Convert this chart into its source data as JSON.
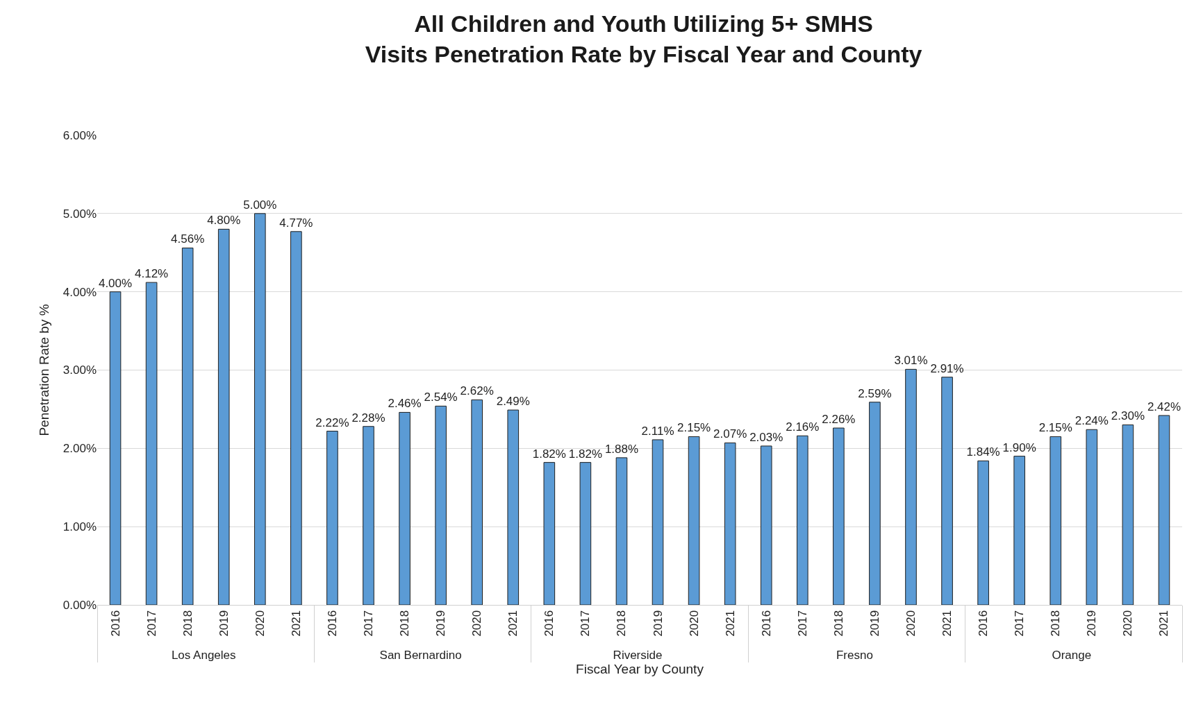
{
  "chart_data": {
    "type": "bar",
    "title": "All Children and Youth Utilizing 5+ SMHS\nVisits Penetration Rate by Fiscal Year and County",
    "xlabel": "Fiscal Year by County",
    "ylabel": "Penetration Rate by %",
    "categories": [
      "2016",
      "2017",
      "2018",
      "2019",
      "2020",
      "2021",
      "2016",
      "2017",
      "2018",
      "2019",
      "2020",
      "2021",
      "2016",
      "2017",
      "2018",
      "2019",
      "2020",
      "2021",
      "2016",
      "2017",
      "2018",
      "2019",
      "2020",
      "2021",
      "2016",
      "2017",
      "2018",
      "2019",
      "2020",
      "2021"
    ],
    "annotations": [
      "Los Angeles",
      "San Bernardino",
      "Riverside",
      "Fresno",
      "Orange"
    ],
    "values": [
      4.0,
      4.12,
      4.56,
      4.8,
      5.0,
      4.77,
      2.22,
      2.28,
      2.46,
      2.54,
      2.62,
      2.49,
      1.82,
      1.82,
      1.88,
      2.11,
      2.15,
      2.07,
      2.03,
      2.16,
      2.26,
      2.59,
      3.01,
      2.91,
      1.84,
      1.9,
      2.15,
      2.24,
      2.3,
      2.42
    ],
    "value_labels": [
      "4.00%",
      "4.12%",
      "4.56%",
      "4.80%",
      "5.00%",
      "4.77%",
      "2.22%",
      "2.28%",
      "2.46%",
      "2.54%",
      "2.62%",
      "2.49%",
      "1.82%",
      "1.82%",
      "1.88%",
      "2.11%",
      "2.15%",
      "2.07%",
      "2.03%",
      "2.16%",
      "2.26%",
      "2.59%",
      "3.01%",
      "2.91%",
      "1.84%",
      "1.90%",
      "2.15%",
      "2.24%",
      "2.30%",
      "2.42%"
    ],
    "color": "#5b9bd5",
    "ylim": [
      0,
      6
    ],
    "yticks": [
      {
        "value": 0,
        "label": "0.00%"
      },
      {
        "value": 1,
        "label": "1.00%"
      },
      {
        "value": 2,
        "label": "2.00%"
      },
      {
        "value": 3,
        "label": "3.00%"
      },
      {
        "value": 4,
        "label": "4.00%"
      },
      {
        "value": 5,
        "label": "5.00%"
      },
      {
        "value": 6,
        "label": "6.00%"
      }
    ],
    "grid": "y",
    "legend": false
  }
}
